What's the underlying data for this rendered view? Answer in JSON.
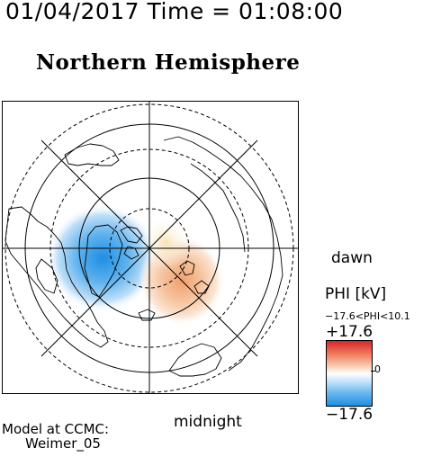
{
  "header": {
    "timestamp": "01/04/2017 Time = 01:08:00",
    "title": "Northern Hemisphere"
  },
  "map": {
    "label_dawn": "dawn",
    "label_midnight": "midnight",
    "projection": "polar stereographic, north pole centered",
    "features": [
      "coastlines",
      "latitude circles",
      "longitude meridians",
      "potential pattern"
    ]
  },
  "colorbar": {
    "title": "PHI [kV]",
    "range_text": "−17.6<PHI<10.1",
    "max_label": "+17.6",
    "min_label": "−17.6",
    "zero_label": "0",
    "colors": {
      "positive": "#d7262b",
      "zero": "#ffffff",
      "negative": "#1e8fe3"
    }
  },
  "footer": {
    "model_line1": "Model at CCMC:",
    "model_line2": "Weimer_05"
  }
}
